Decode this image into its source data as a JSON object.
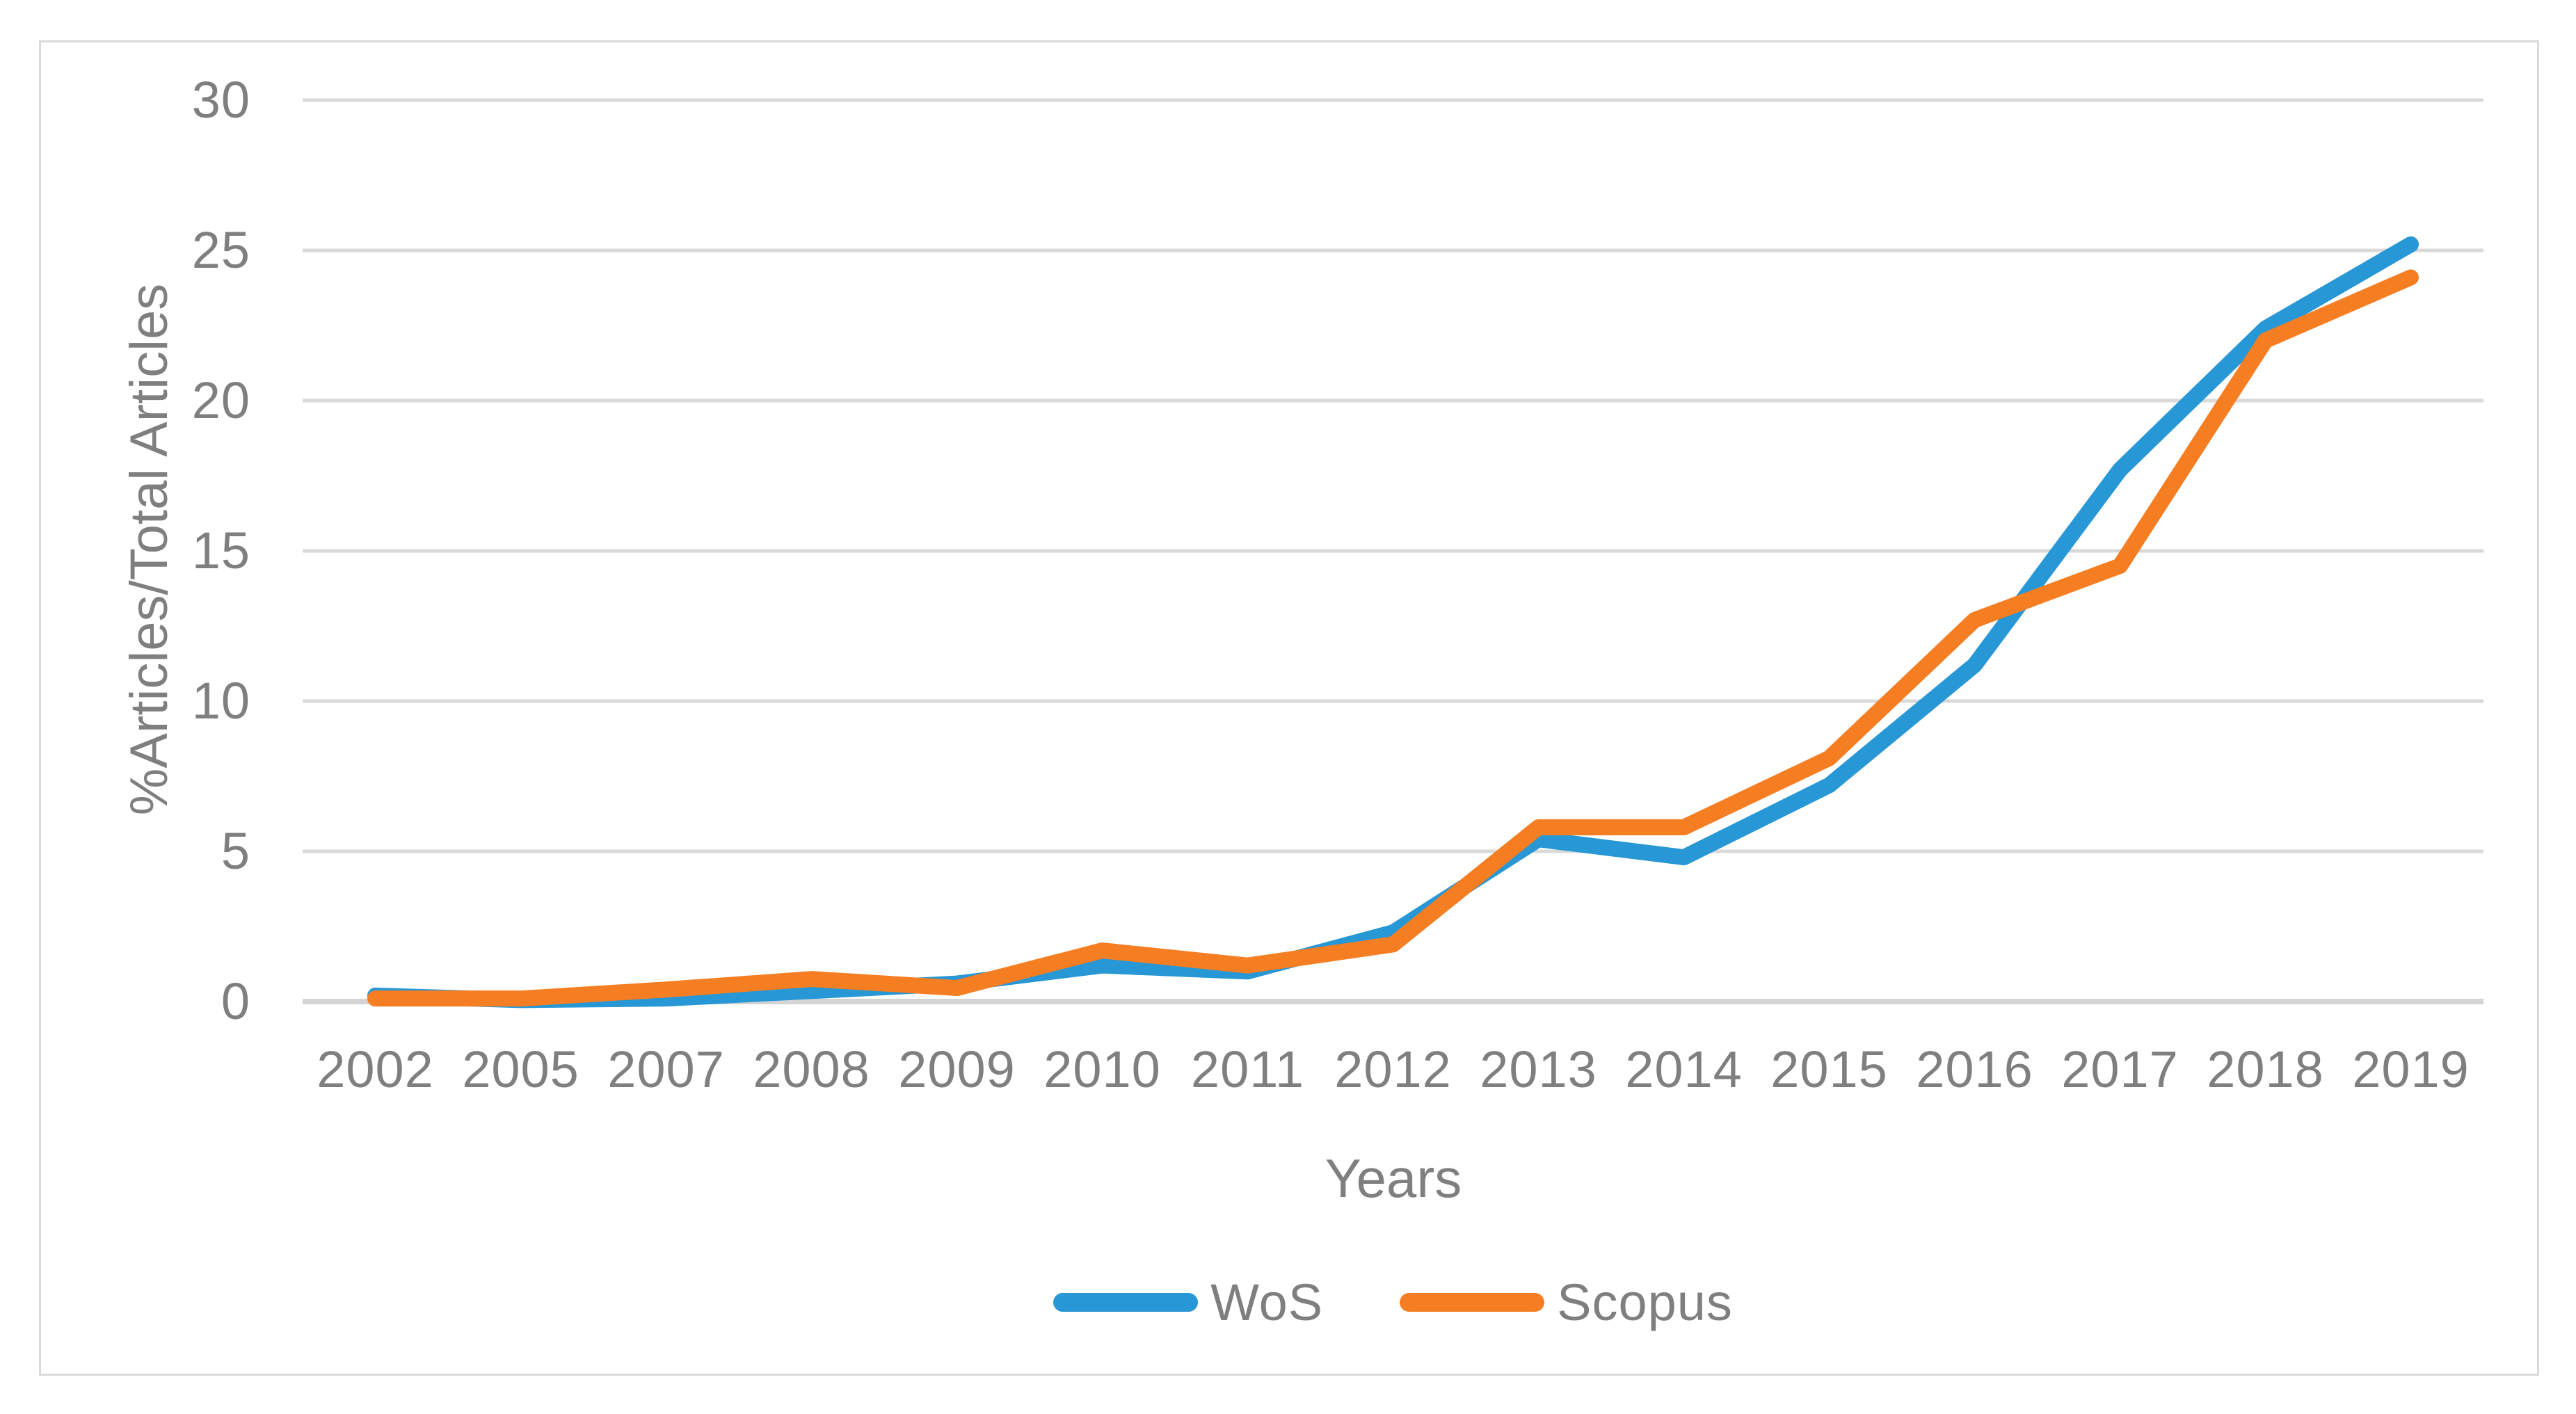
{
  "chart_data": {
    "type": "line",
    "title": "",
    "categories": [
      "2002",
      "2005",
      "2007",
      "2008",
      "2009",
      "2010",
      "2011",
      "2012",
      "2013",
      "2014",
      "2015",
      "2016",
      "2017",
      "2018",
      "2019"
    ],
    "series": [
      {
        "name": "WoS",
        "color": "#2897D5",
        "values": [
          0.2,
          0.05,
          0.1,
          0.35,
          0.6,
          1.2,
          1.0,
          2.3,
          5.4,
          4.8,
          7.2,
          11.2,
          17.7,
          22.4,
          25.2
        ]
      },
      {
        "name": "Scopus",
        "color": "#F57E22",
        "values": [
          0.1,
          0.1,
          0.4,
          0.75,
          0.45,
          1.7,
          1.2,
          1.9,
          5.8,
          5.8,
          8.1,
          12.7,
          14.5,
          22.0,
          24.1
        ]
      }
    ],
    "xlabel": "Years",
    "ylabel": "%Articles/Total Articles",
    "ylim": [
      0,
      30
    ],
    "yticks": [
      0,
      5,
      10,
      15,
      20,
      25,
      30
    ],
    "grid": "horizontal-only",
    "legend_position": "bottom-center"
  },
  "style": {
    "text_color": "#7F7F7F",
    "gridline_color": "#D9D9D9",
    "axis_line_color": "#D4D4D4",
    "figure_border_color": "#D9D9D9",
    "background_color": "#FFFFFF"
  }
}
